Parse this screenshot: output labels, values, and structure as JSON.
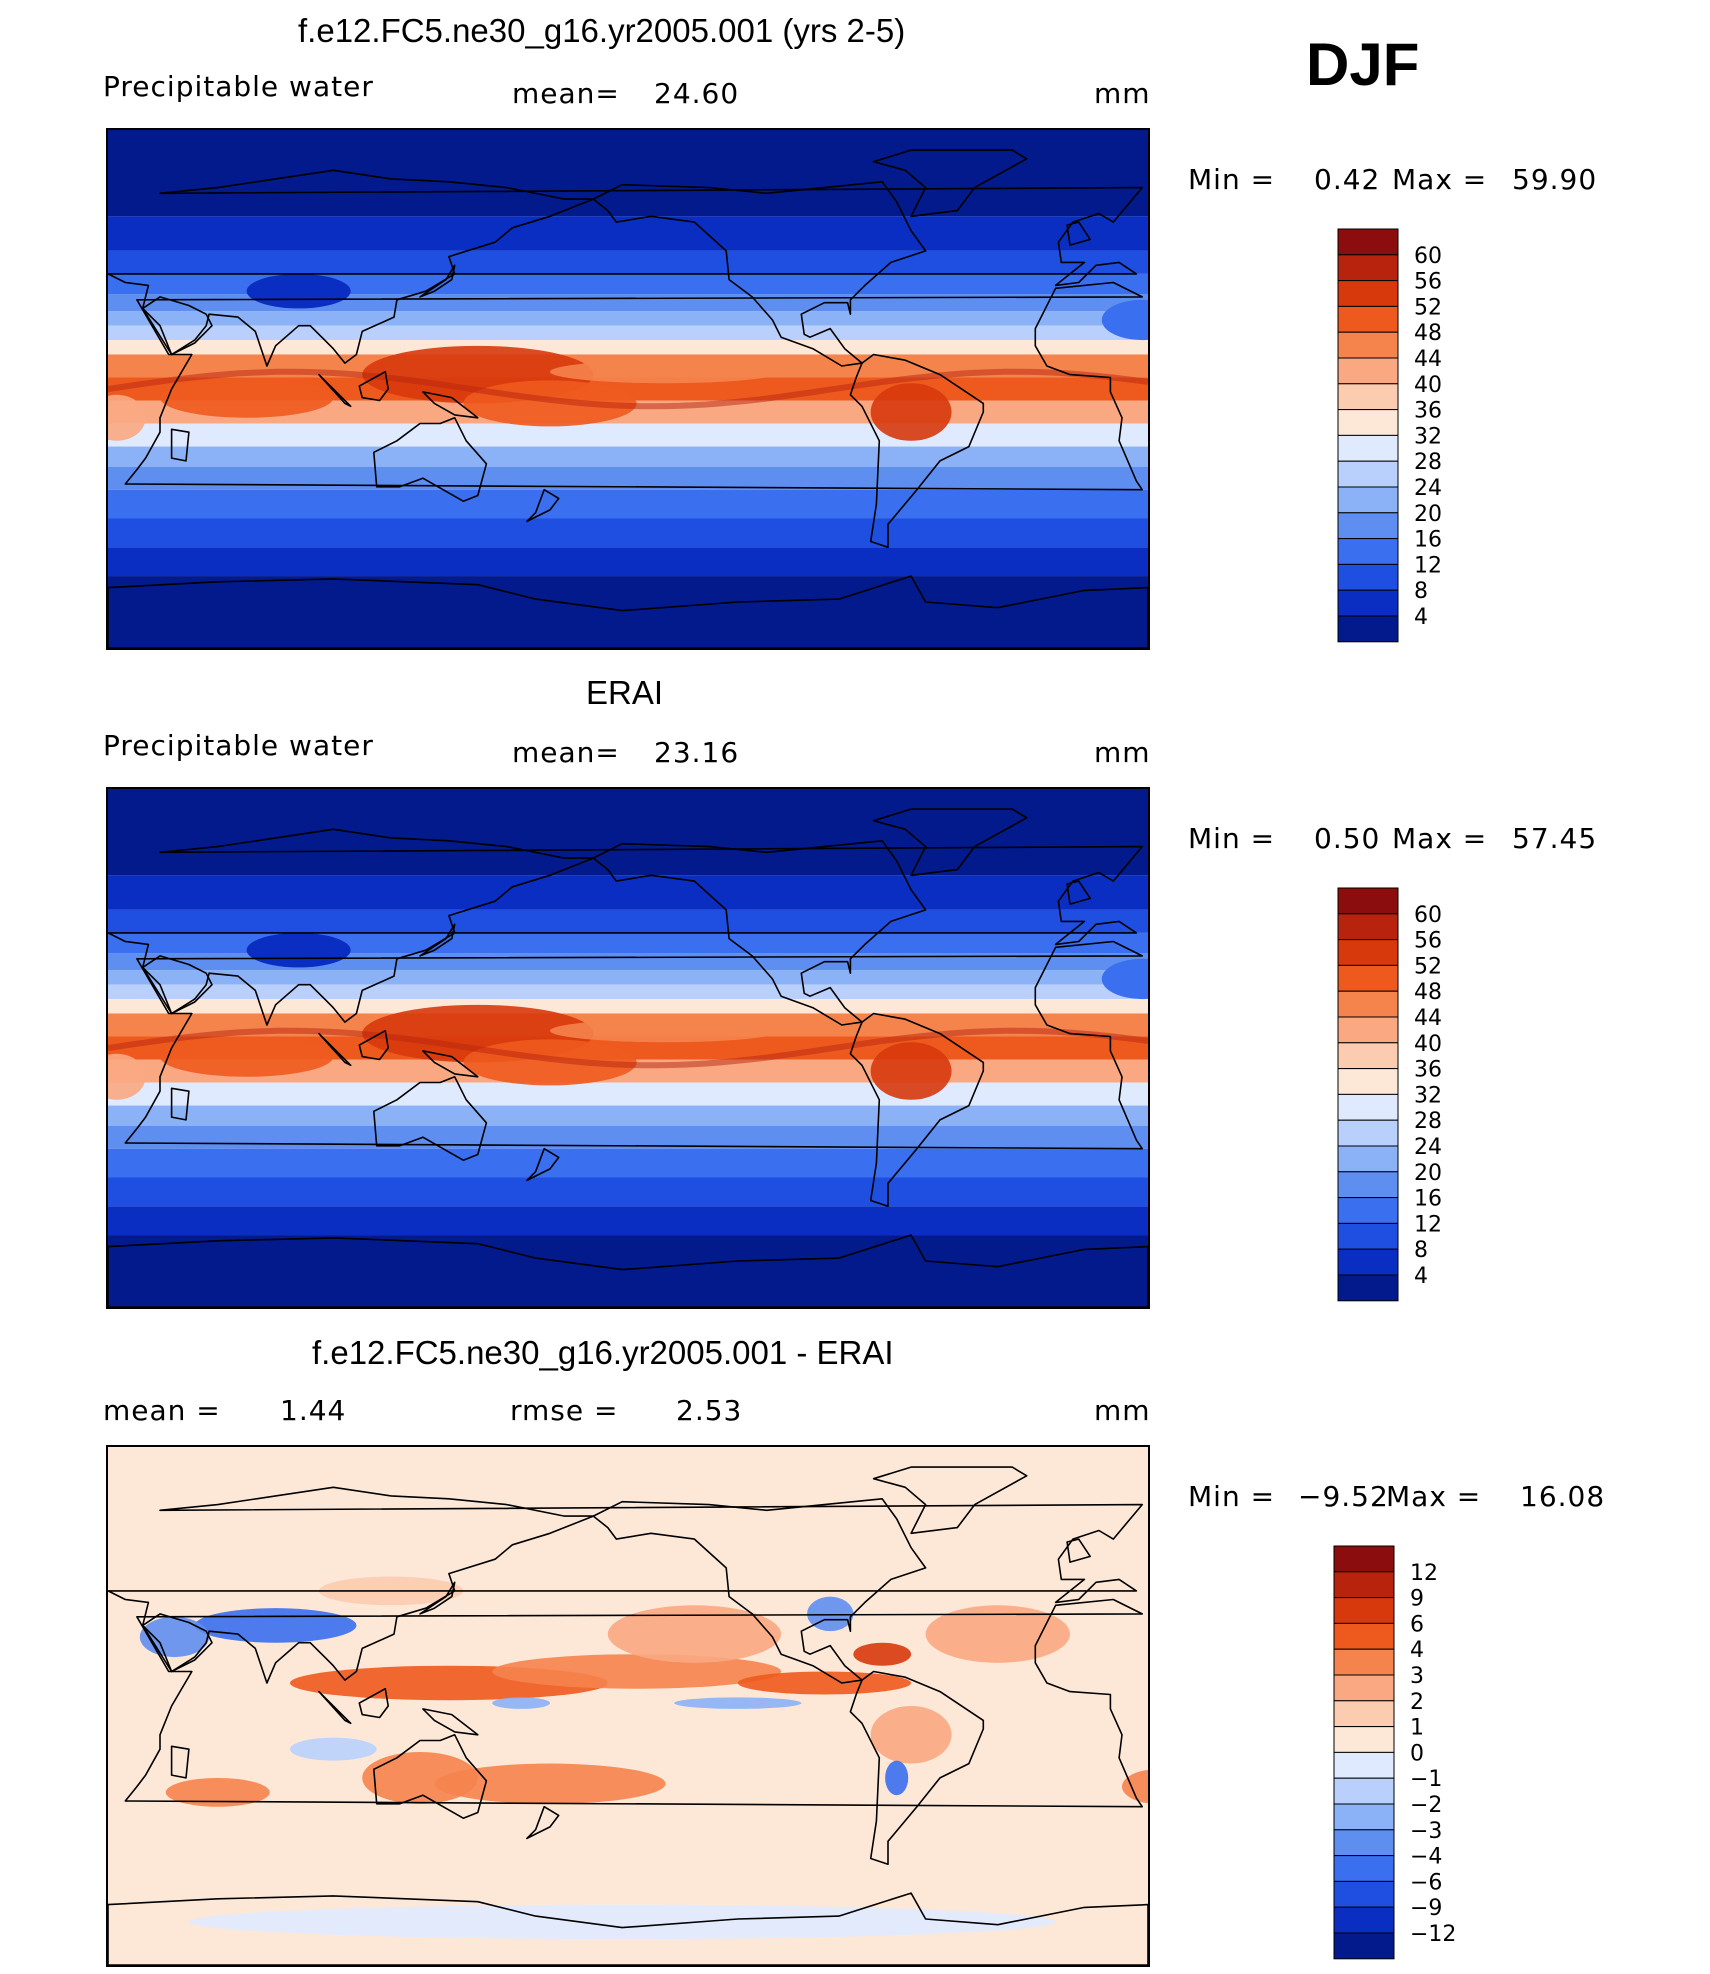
{
  "season": "DJF",
  "unit_label": "mm",
  "panels": [
    {
      "title": "f.e12.FC5.ne30_g16.yr2005.001 (yrs 2-5)",
      "left_label": "Precipitable  water",
      "mean_label": "mean=",
      "mean_value": "24.60",
      "min_label": "Min  =",
      "min_value": "0.42",
      "max_label": "Max  =",
      "max_value": "59.90",
      "kind": "field",
      "colorbar": {
        "levels": [
          "60",
          "56",
          "52",
          "48",
          "44",
          "40",
          "36",
          "32",
          "28",
          "24",
          "20",
          "16",
          "12",
          "8",
          "4"
        ],
        "colors": [
          "#8b0d0d",
          "#b8230d",
          "#d7380c",
          "#ee5a1e",
          "#f5834c",
          "#f9a882",
          "#fcccb0",
          "#fde8d8",
          "#dfeaff",
          "#b9d0fc",
          "#8bb1f7",
          "#5e8ef0",
          "#3a6ff0",
          "#1f4fe0",
          "#0a2ec2",
          "#021a8c"
        ]
      }
    },
    {
      "title": "ERAI",
      "left_label": "Precipitable  water",
      "mean_label": "mean=",
      "mean_value": "23.16",
      "min_label": "Min  =",
      "min_value": "0.50",
      "max_label": "Max  =",
      "max_value": "57.45",
      "kind": "field",
      "colorbar": {
        "levels": [
          "60",
          "56",
          "52",
          "48",
          "44",
          "40",
          "36",
          "32",
          "28",
          "24",
          "20",
          "16",
          "12",
          "8",
          "4"
        ],
        "colors": [
          "#8b0d0d",
          "#b8230d",
          "#d7380c",
          "#ee5a1e",
          "#f5834c",
          "#f9a882",
          "#fcccb0",
          "#fde8d8",
          "#dfeaff",
          "#b9d0fc",
          "#8bb1f7",
          "#5e8ef0",
          "#3a6ff0",
          "#1f4fe0",
          "#0a2ec2",
          "#021a8c"
        ]
      }
    },
    {
      "title": "f.e12.FC5.ne30_g16.yr2005.001 - ERAI",
      "left_label": "mean  =",
      "mean_label": "rmse  =",
      "left_value": "1.44",
      "mean_value": "2.53",
      "min_label": "Min  =",
      "min_value": "−9.52",
      "max_label": "Max  =",
      "max_value": "16.08",
      "kind": "diff",
      "colorbar": {
        "levels": [
          "12",
          "9",
          "6",
          "4",
          "3",
          "2",
          "1",
          "0",
          "−1",
          "−2",
          "−3",
          "−4",
          "−6",
          "−9",
          "−12"
        ],
        "colors": [
          "#8b0d0d",
          "#b8230d",
          "#d7380c",
          "#ee5a1e",
          "#f5834c",
          "#f9a882",
          "#fcccb0",
          "#fde8d8",
          "#dfeaff",
          "#b9d0fc",
          "#8bb1f7",
          "#5e8ef0",
          "#3a6ff0",
          "#1f4fe0",
          "#0a2ec2",
          "#021a8c"
        ]
      }
    }
  ]
}
